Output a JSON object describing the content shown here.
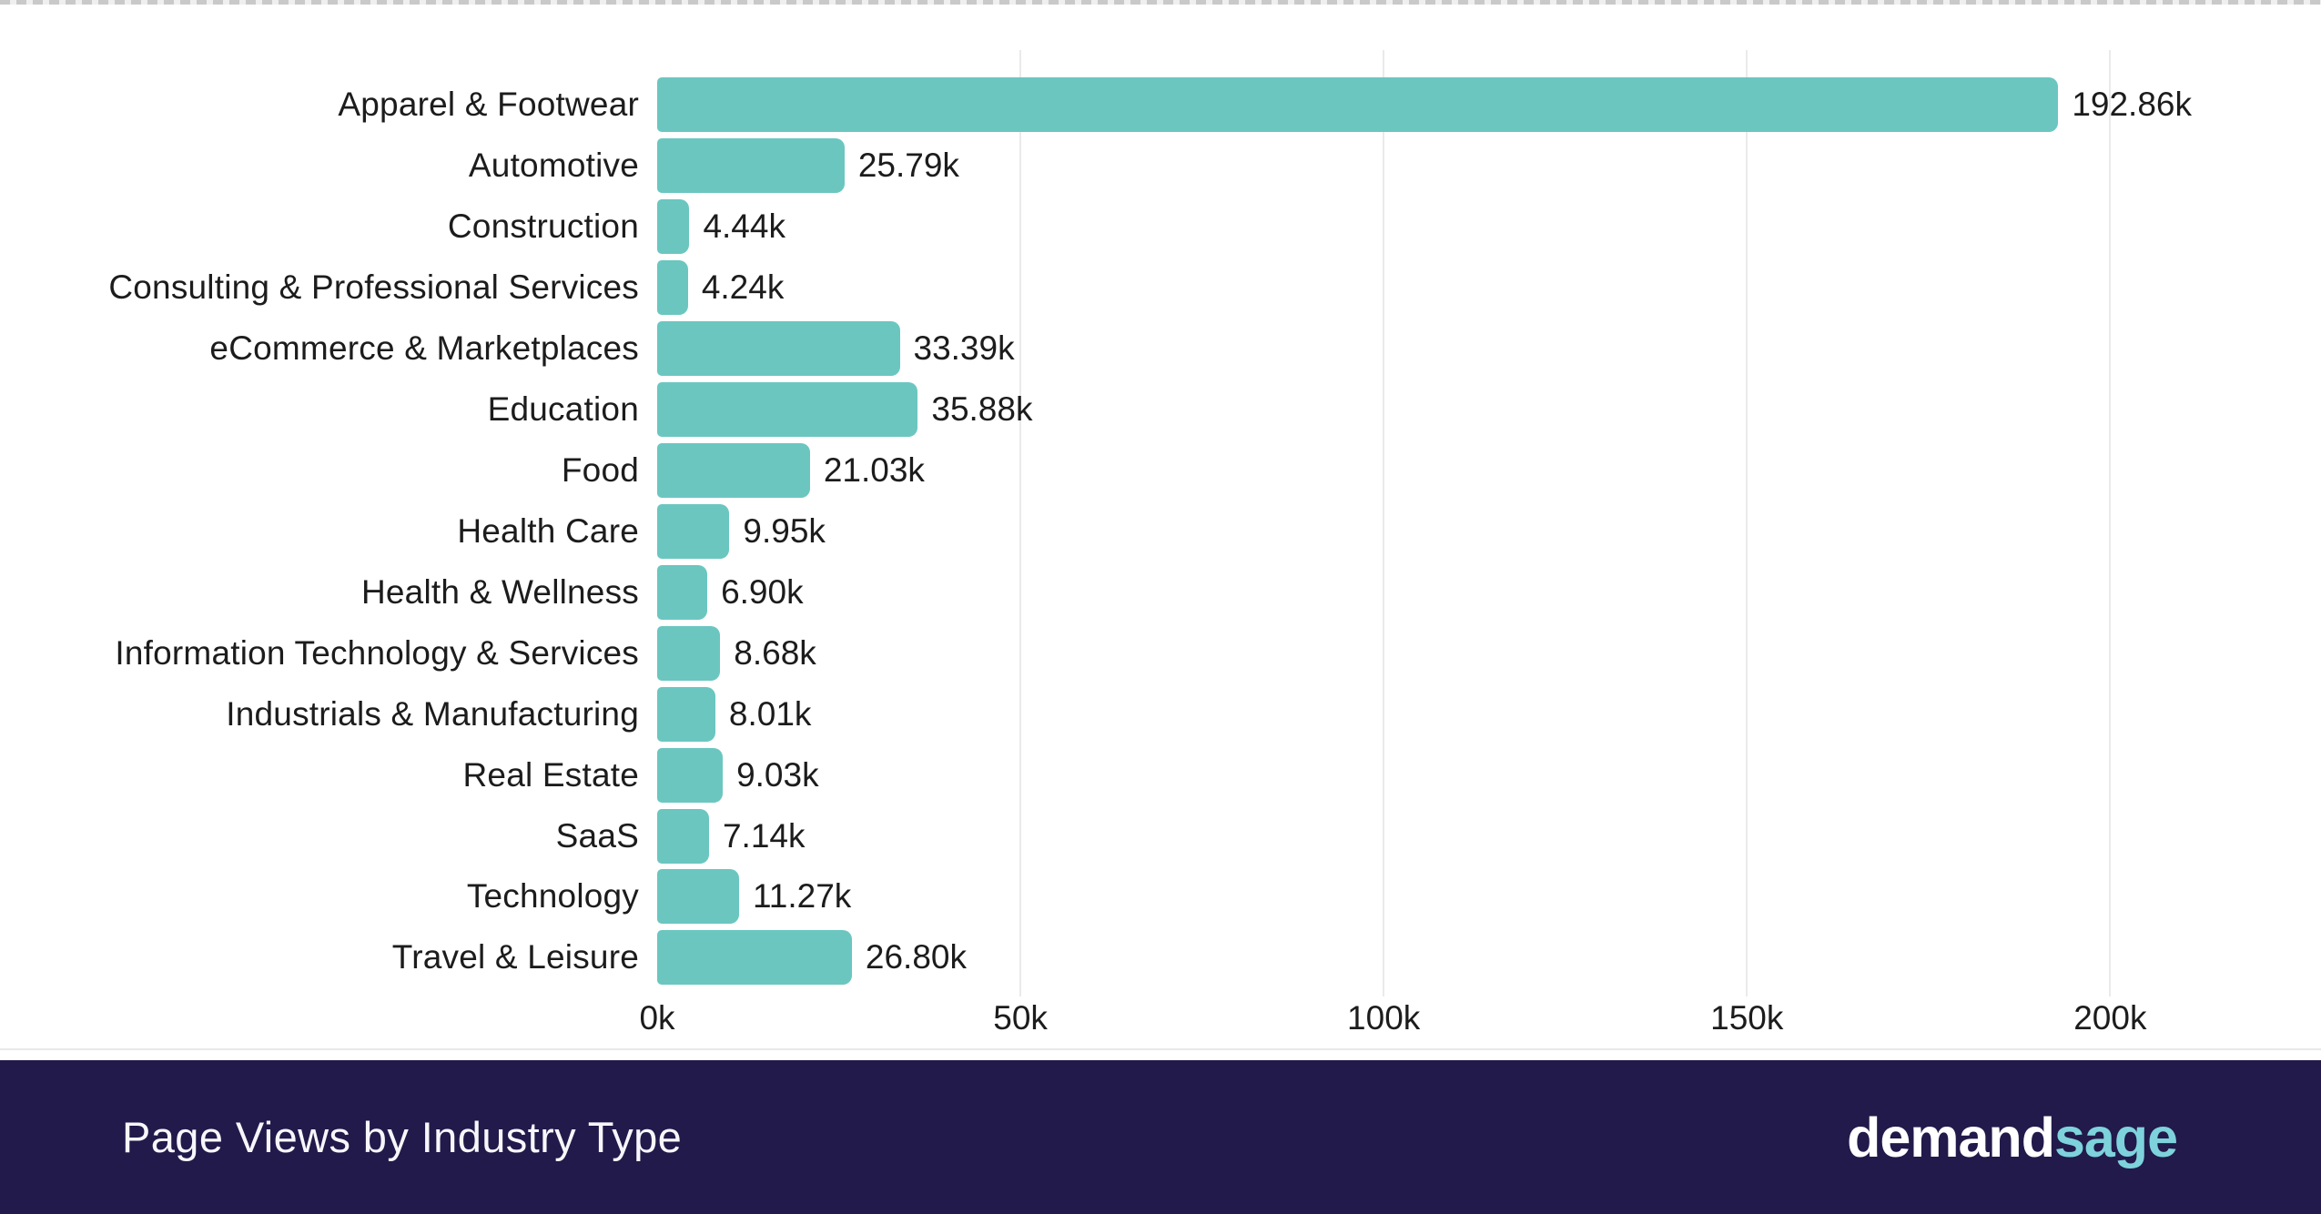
{
  "chart_data": {
    "type": "bar",
    "orientation": "horizontal",
    "title": "Page Views by Industry Type",
    "categories": [
      "Apparel & Footwear",
      "Automotive",
      "Construction",
      "Consulting & Professional Services",
      "eCommerce & Marketplaces",
      "Education",
      "Food",
      "Health Care",
      "Health & Wellness",
      "Information Technology & Services",
      "Industrials & Manufacturing",
      "Real Estate",
      "SaaS",
      "Technology",
      "Travel & Leisure"
    ],
    "values": [
      192860,
      25790,
      4440,
      4240,
      33390,
      35880,
      21030,
      9950,
      6900,
      8680,
      8010,
      9030,
      7140,
      11270,
      26800
    ],
    "value_labels": [
      "192.86k",
      "25.79k",
      "4.44k",
      "4.24k",
      "33.39k",
      "35.88k",
      "21.03k",
      "9.95k",
      "6.90k",
      "8.68k",
      "8.01k",
      "9.03k",
      "7.14k",
      "11.27k",
      "26.80k"
    ],
    "xlabel": "",
    "ylabel": "",
    "x_ticks": [
      {
        "value": 0,
        "label": "0k"
      },
      {
        "value": 50000,
        "label": "50k"
      },
      {
        "value": 100000,
        "label": "100k"
      },
      {
        "value": 150000,
        "label": "150k"
      },
      {
        "value": 200000,
        "label": "200k"
      }
    ],
    "xlim": [
      0,
      218000
    ],
    "grid": "vertical-light",
    "legend": "none",
    "bar_color": "#6bc6c0"
  },
  "footer": {
    "title": "Page Views by Industry Type",
    "logo": {
      "part1": "demand",
      "part2": "sage"
    }
  },
  "colors": {
    "bar": "#6bc6c0",
    "grid": "#eaeaea",
    "text": "#1c1c1c",
    "footer_bg": "#211a4a",
    "logo_sage": "#7ed2dc"
  }
}
